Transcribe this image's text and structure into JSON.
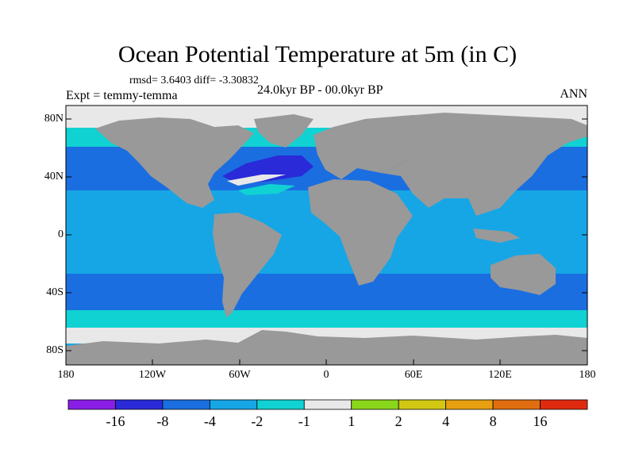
{
  "title": "Ocean Potential Temperature at 5m (in C)",
  "stats_text": "rmsd= 3.6403 diff= -3.30832",
  "experiment_label": "Expt = temmy-temma",
  "period_label": "24.0kyr BP - 00.0kyr BP",
  "season_label": "ANN",
  "y_tick_labels": [
    "80N",
    "40N",
    "0",
    "40S",
    "80S"
  ],
  "x_tick_labels": [
    "180",
    "120W",
    "60W",
    "0",
    "60E",
    "120E",
    "180"
  ],
  "colorbar": {
    "labels": [
      "-16",
      "-8",
      "-4",
      "-2",
      "-1",
      "1",
      "2",
      "4",
      "8",
      "16"
    ],
    "colors": [
      "#8a1ee6",
      "#2a2ad8",
      "#1a6ee0",
      "#16a6e6",
      "#10d2d2",
      "#e8e8e8",
      "#8ad61a",
      "#d2c814",
      "#e6a010",
      "#e06e10",
      "#e02a10"
    ]
  },
  "map_colors": {
    "land": "#999999",
    "ocean_default": "#16a6e6",
    "band_minus_4_to_minus_8": "#1a6ee0",
    "band_minus_8_to_minus_16": "#2a2ad8",
    "band_minus_1_to_minus_2": "#10d2d2",
    "near_zero": "#e8e8e8"
  }
}
